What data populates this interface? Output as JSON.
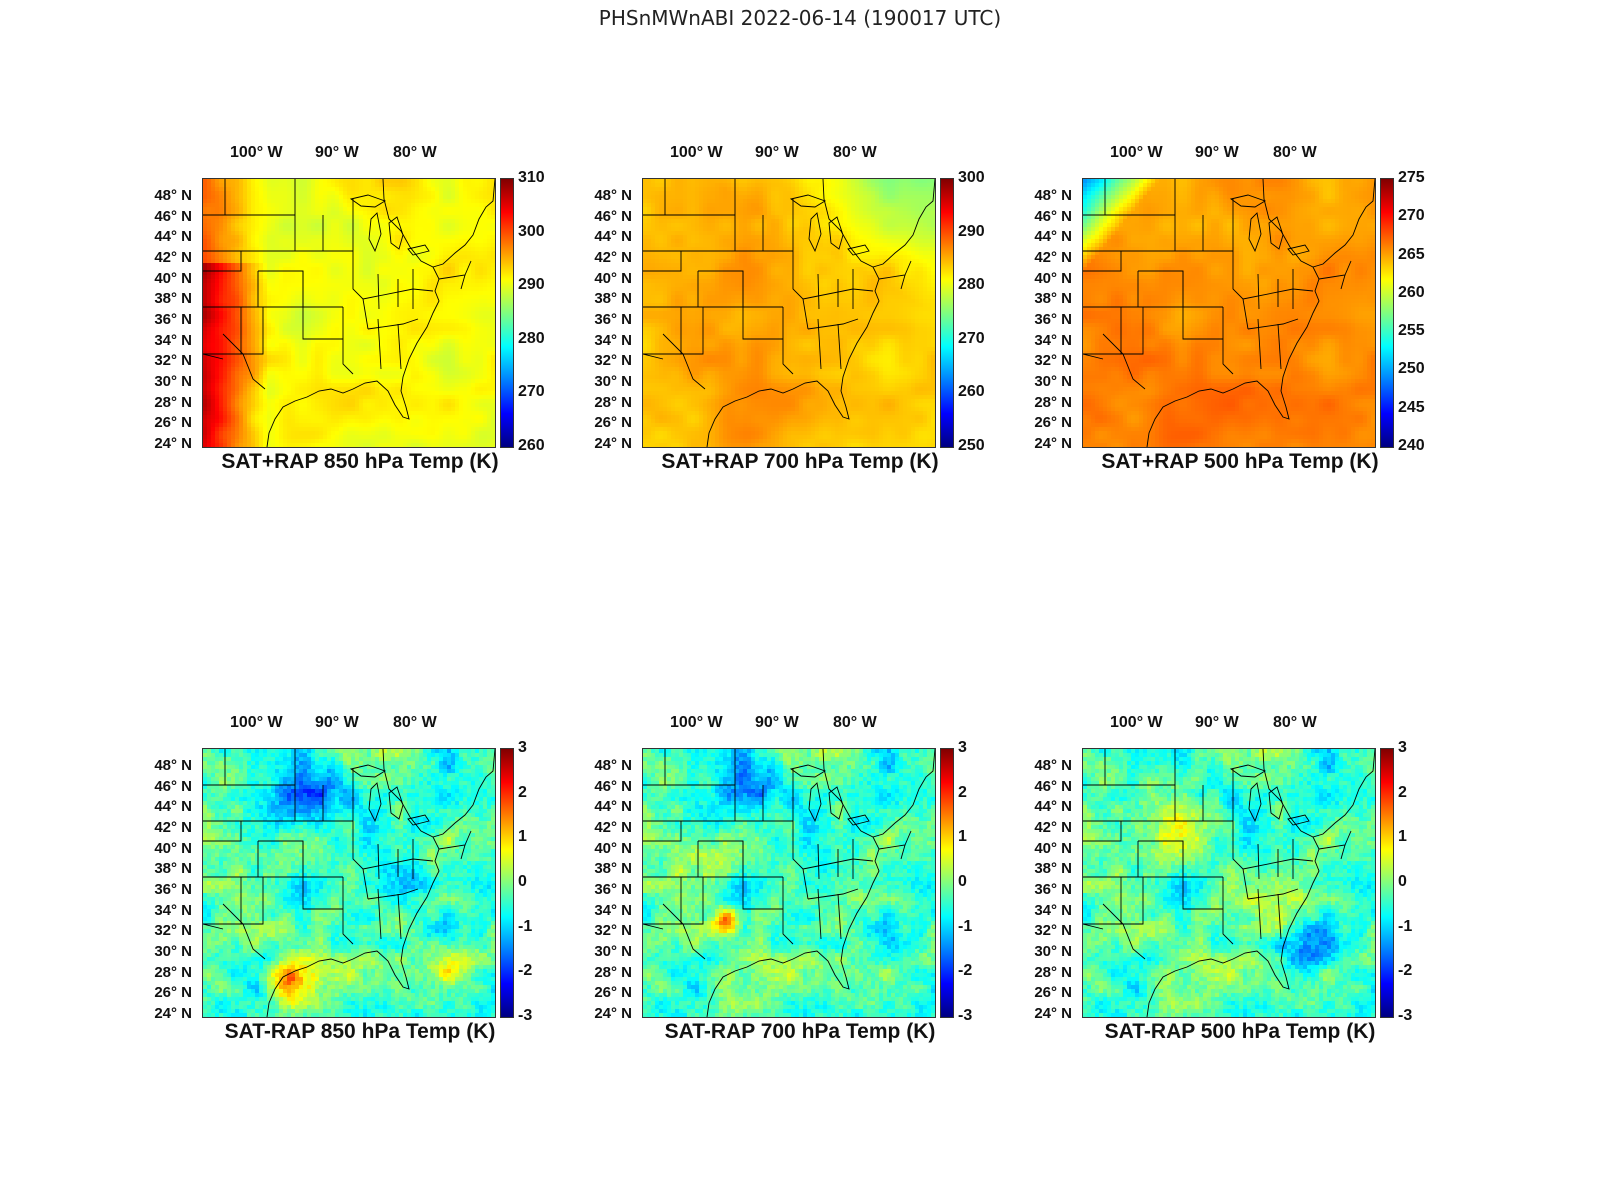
{
  "figure_title": "PHSnMWnABI 2022-06-14 (190017 UTC)",
  "lon_labels": [
    "100° W",
    "90° W",
    "80° W"
  ],
  "lat_labels": [
    "48° N",
    "46° N",
    "44° N",
    "42° N",
    "40° N",
    "38° N",
    "36° N",
    "34° N",
    "32° N",
    "30° N",
    "28° N",
    "26° N",
    "24° N"
  ],
  "colormap": "jet",
  "border_color": "#000000",
  "panels": [
    {
      "title": "SAT+RAP 850 hPa Temp (K)",
      "colorbar_ticks": [
        "310",
        "300",
        "290",
        "280",
        "270",
        "260"
      ],
      "range": [
        260,
        310
      ],
      "field": "temp850"
    },
    {
      "title": "SAT+RAP 700 hPa Temp (K)",
      "colorbar_ticks": [
        "300",
        "290",
        "280",
        "270",
        "260",
        "250"
      ],
      "range": [
        250,
        300
      ],
      "field": "temp700"
    },
    {
      "title": "SAT+RAP 500 hPa Temp (K)",
      "colorbar_ticks": [
        "275",
        "270",
        "265",
        "260",
        "255",
        "250",
        "245",
        "240"
      ],
      "range": [
        240,
        275
      ],
      "field": "temp500"
    },
    {
      "title": "SAT-RAP 850 hPa Temp (K)",
      "colorbar_ticks": [
        "3",
        "2",
        "1",
        "0",
        "-1",
        "-2",
        "-3"
      ],
      "range": [
        -3,
        3
      ],
      "field": "diff850"
    },
    {
      "title": "SAT-RAP 700 hPa Temp (K)",
      "colorbar_ticks": [
        "3",
        "2",
        "1",
        "0",
        "-1",
        "-2",
        "-3"
      ],
      "range": [
        -3,
        3
      ],
      "field": "diff700"
    },
    {
      "title": "SAT-RAP 500 hPa Temp (K)",
      "colorbar_ticks": [
        "3",
        "2",
        "1",
        "0",
        "-1",
        "-2",
        "-3"
      ],
      "range": [
        -3,
        3
      ],
      "field": "diff500"
    }
  ]
}
